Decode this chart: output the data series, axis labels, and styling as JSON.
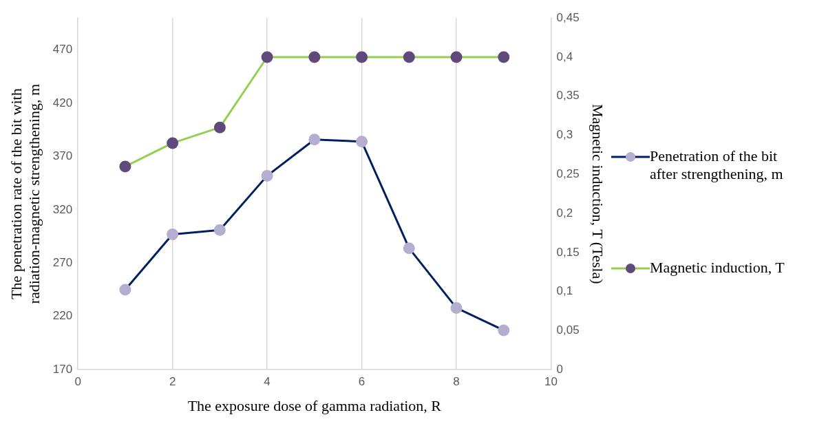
{
  "chart_data": {
    "type": "line",
    "xlabel": "The exposure dose of gamma radiation, R",
    "ylabel": "The penetration rate of the bit with radiation-magnetic strengthening, m",
    "y2label": "Magnetic induction, T (Tesla)",
    "x": [
      1,
      2,
      3,
      4,
      5,
      6,
      7,
      8,
      9
    ],
    "series": [
      {
        "name": "Penetration of the bit after strengthening, m",
        "color": "#002060",
        "colors": [
          "#b4aed0",
          "#b4aed0",
          "#b4aed0",
          "#b4aed0",
          "#b4aed0",
          "#b4aed0",
          "#b4aed0",
          "#b4aed0",
          "#b4aed0"
        ],
        "values": [
          245,
          297,
          301,
          352,
          386,
          384,
          284,
          228,
          207
        ]
      },
      {
        "name": "Magnetic induction, T",
        "color": "#92d050",
        "colors": [
          "#604a7b",
          "#604a7b",
          "#604a7b",
          "#604a7b",
          "#604a7b",
          "#604a7b",
          "#604a7b",
          "#604a7b",
          "#604a7b"
        ],
        "axis": "y2",
        "values": [
          0.26,
          0.29,
          0.31,
          0.4,
          0.4,
          0.4,
          0.4,
          0.4,
          0.4
        ]
      }
    ],
    "xlim": [
      0,
      10
    ],
    "xticks": [
      0,
      2,
      4,
      6,
      8,
      10
    ],
    "ylim": [
      170,
      500
    ],
    "yticks": [
      170,
      220,
      270,
      320,
      370,
      420,
      470
    ],
    "y2lim": [
      0,
      0.45
    ],
    "y2ticks": [
      0,
      {
        "value": 0.05,
        "label": "0,05"
      },
      {
        "value": 0.1,
        "label": "0,1"
      },
      {
        "value": 0.15,
        "label": "0,15"
      },
      {
        "value": 0.2,
        "label": "0,2"
      },
      {
        "value": 0.25,
        "label": "0,25"
      },
      {
        "value": 0.3,
        "label": "0,3"
      },
      {
        "value": 0.35,
        "label": "0,35"
      },
      {
        "value": 0.4,
        "label": "0,4"
      },
      {
        "value": 0.45,
        "label": "0,45"
      }
    ],
    "grid": "x",
    "legend": "right",
    "marker": "circle",
    "line_style": "solid"
  }
}
